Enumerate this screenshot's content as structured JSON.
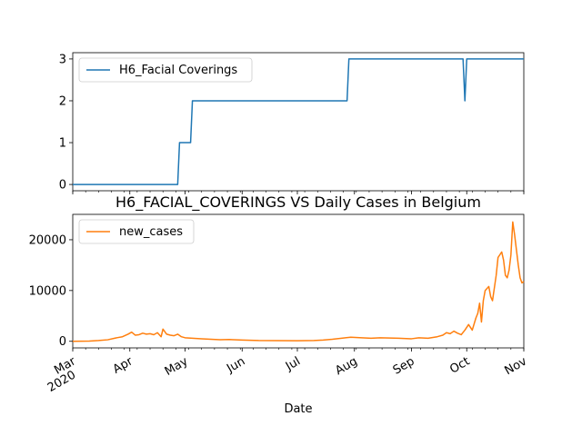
{
  "chart_data": [
    {
      "type": "line",
      "title": "",
      "xlabel": "",
      "ylabel": "",
      "ylim": [
        -0.15,
        3.15
      ],
      "yticks": [
        0,
        1,
        2,
        3
      ],
      "legend": "upper-left",
      "series": [
        {
          "name": "H6_Facial Coverings",
          "color": "#1f77b4",
          "x": [
            "2020-03-01",
            "2020-04-27",
            "2020-04-28",
            "2020-05-04",
            "2020-05-05",
            "2020-07-28",
            "2020-07-29",
            "2020-09-29",
            "2020-09-30",
            "2020-10-01",
            "2020-11-01"
          ],
          "y": [
            0,
            0,
            1,
            1,
            2,
            2,
            3,
            3,
            2,
            3,
            3
          ]
        }
      ]
    },
    {
      "type": "line",
      "title": "H6_FACIAL_COVERINGS VS Daily Cases in Belgium",
      "xlabel": "Date",
      "ylabel": "",
      "ylim": [
        -1300,
        25000
      ],
      "yticks": [
        0,
        10000,
        20000
      ],
      "legend": "upper-left",
      "series": [
        {
          "name": "new_cases",
          "color": "#ff7f0e",
          "x": [
            "2020-03-01",
            "2020-03-10",
            "2020-03-15",
            "2020-03-20",
            "2020-03-25",
            "2020-03-28",
            "2020-03-31",
            "2020-04-02",
            "2020-04-04",
            "2020-04-06",
            "2020-04-08",
            "2020-04-10",
            "2020-04-12",
            "2020-04-14",
            "2020-04-16",
            "2020-04-18",
            "2020-04-19",
            "2020-04-21",
            "2020-04-23",
            "2020-04-25",
            "2020-04-27",
            "2020-04-29",
            "2020-05-01",
            "2020-05-05",
            "2020-05-10",
            "2020-05-15",
            "2020-05-20",
            "2020-05-25",
            "2020-06-01",
            "2020-06-10",
            "2020-06-20",
            "2020-07-01",
            "2020-07-10",
            "2020-07-15",
            "2020-07-20",
            "2020-07-25",
            "2020-07-30",
            "2020-08-05",
            "2020-08-10",
            "2020-08-15",
            "2020-08-20",
            "2020-08-25",
            "2020-09-01",
            "2020-09-05",
            "2020-09-10",
            "2020-09-15",
            "2020-09-18",
            "2020-09-20",
            "2020-09-22",
            "2020-09-24",
            "2020-09-26",
            "2020-09-28",
            "2020-09-30",
            "2020-10-02",
            "2020-10-04",
            "2020-10-06",
            "2020-10-07",
            "2020-10-08",
            "2020-10-09",
            "2020-10-10",
            "2020-10-11",
            "2020-10-13",
            "2020-10-14",
            "2020-10-15",
            "2020-10-16",
            "2020-10-17",
            "2020-10-18",
            "2020-10-20",
            "2020-10-21",
            "2020-10-22",
            "2020-10-23",
            "2020-10-24",
            "2020-10-25",
            "2020-10-26",
            "2020-10-27",
            "2020-10-28",
            "2020-10-29",
            "2020-10-30",
            "2020-10-31",
            "2020-11-01"
          ],
          "y": [
            0,
            50,
            150,
            300,
            700,
            900,
            1400,
            1800,
            1200,
            1300,
            1600,
            1400,
            1500,
            1300,
            1700,
            900,
            2400,
            1400,
            1200,
            1100,
            1400,
            900,
            700,
            600,
            500,
            400,
            300,
            350,
            250,
            150,
            120,
            100,
            150,
            250,
            400,
            600,
            800,
            700,
            600,
            700,
            650,
            600,
            500,
            700,
            600,
            900,
            1200,
            1700,
            1500,
            2000,
            1600,
            1300,
            2200,
            3300,
            2200,
            4600,
            5500,
            7500,
            3800,
            8000,
            10000,
            10800,
            8800,
            8000,
            10500,
            13000,
            16500,
            17600,
            16000,
            13000,
            12500,
            14000,
            17000,
            23500,
            21000,
            18000,
            15000,
            12500,
            11500,
            11800
          ]
        }
      ]
    }
  ],
  "xaxis": {
    "start": "2020-03-01",
    "end": "2020-11-01",
    "tick_labels": [
      {
        "date": "2020-03-01",
        "label": "Mar",
        "sub": "2020"
      },
      {
        "date": "2020-04-01",
        "label": "Apr",
        "sub": ""
      },
      {
        "date": "2020-05-01",
        "label": "May",
        "sub": ""
      },
      {
        "date": "2020-06-01",
        "label": "Jun",
        "sub": ""
      },
      {
        "date": "2020-07-01",
        "label": "Jul",
        "sub": ""
      },
      {
        "date": "2020-08-01",
        "label": "Aug",
        "sub": ""
      },
      {
        "date": "2020-09-01",
        "label": "Sep",
        "sub": ""
      },
      {
        "date": "2020-10-01",
        "label": "Oct",
        "sub": ""
      },
      {
        "date": "2020-11-01",
        "label": "Nov",
        "sub": ""
      }
    ]
  }
}
